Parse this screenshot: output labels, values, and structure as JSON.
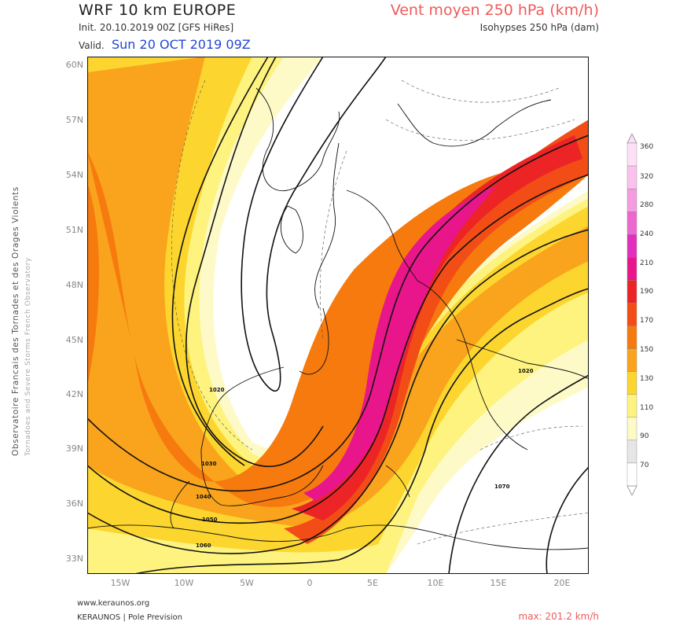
{
  "header": {
    "title": "WRF 10 km EUROPE",
    "init": "Init.   20.10.2019 00Z [GFS HiRes]",
    "valid_label": "Valid.",
    "valid_value": "Sun 20 OCT 2019 09Z",
    "field": "Vent moyen 250 hPa (km/h)",
    "isohypses": "Isohypses 250 hPa (dam)"
  },
  "side_text": "Observatoire Francais des Tornades et des Orages Violents",
  "side_text_2": "Tornadoes and Severe Storms French Observatory",
  "footer": {
    "url": "www.keraunos.org",
    "credit": "KERAUNOS | Pole Prevision",
    "max": "max: 201.2 km/h"
  },
  "axes": {
    "lat": [
      "60N",
      "57N",
      "54N",
      "51N",
      "48N",
      "45N",
      "42N",
      "39N",
      "36N",
      "33N"
    ],
    "lon": [
      "15W",
      "10W",
      "5W",
      "0",
      "5E",
      "10E",
      "15E",
      "20E"
    ]
  },
  "contour_labels": [
    "1020",
    "1030",
    "1040",
    "1050",
    "1060",
    "1020",
    "1070"
  ],
  "colorbar": {
    "levels": [
      "360",
      "320",
      "280",
      "240",
      "210",
      "190",
      "170",
      "150",
      "130",
      "110",
      "90",
      "70"
    ],
    "colors": [
      "#fde0f6",
      "#fbc2ee",
      "#f59be0",
      "#ee66d0",
      "#e22fbe",
      "#e8168a",
      "#ec2426",
      "#f24d16",
      "#f67a0e",
      "#f9a41c",
      "#fcd62e",
      "#fdf37e",
      "#fdfac8",
      "#e6e6e6",
      "#ffffff"
    ]
  }
}
